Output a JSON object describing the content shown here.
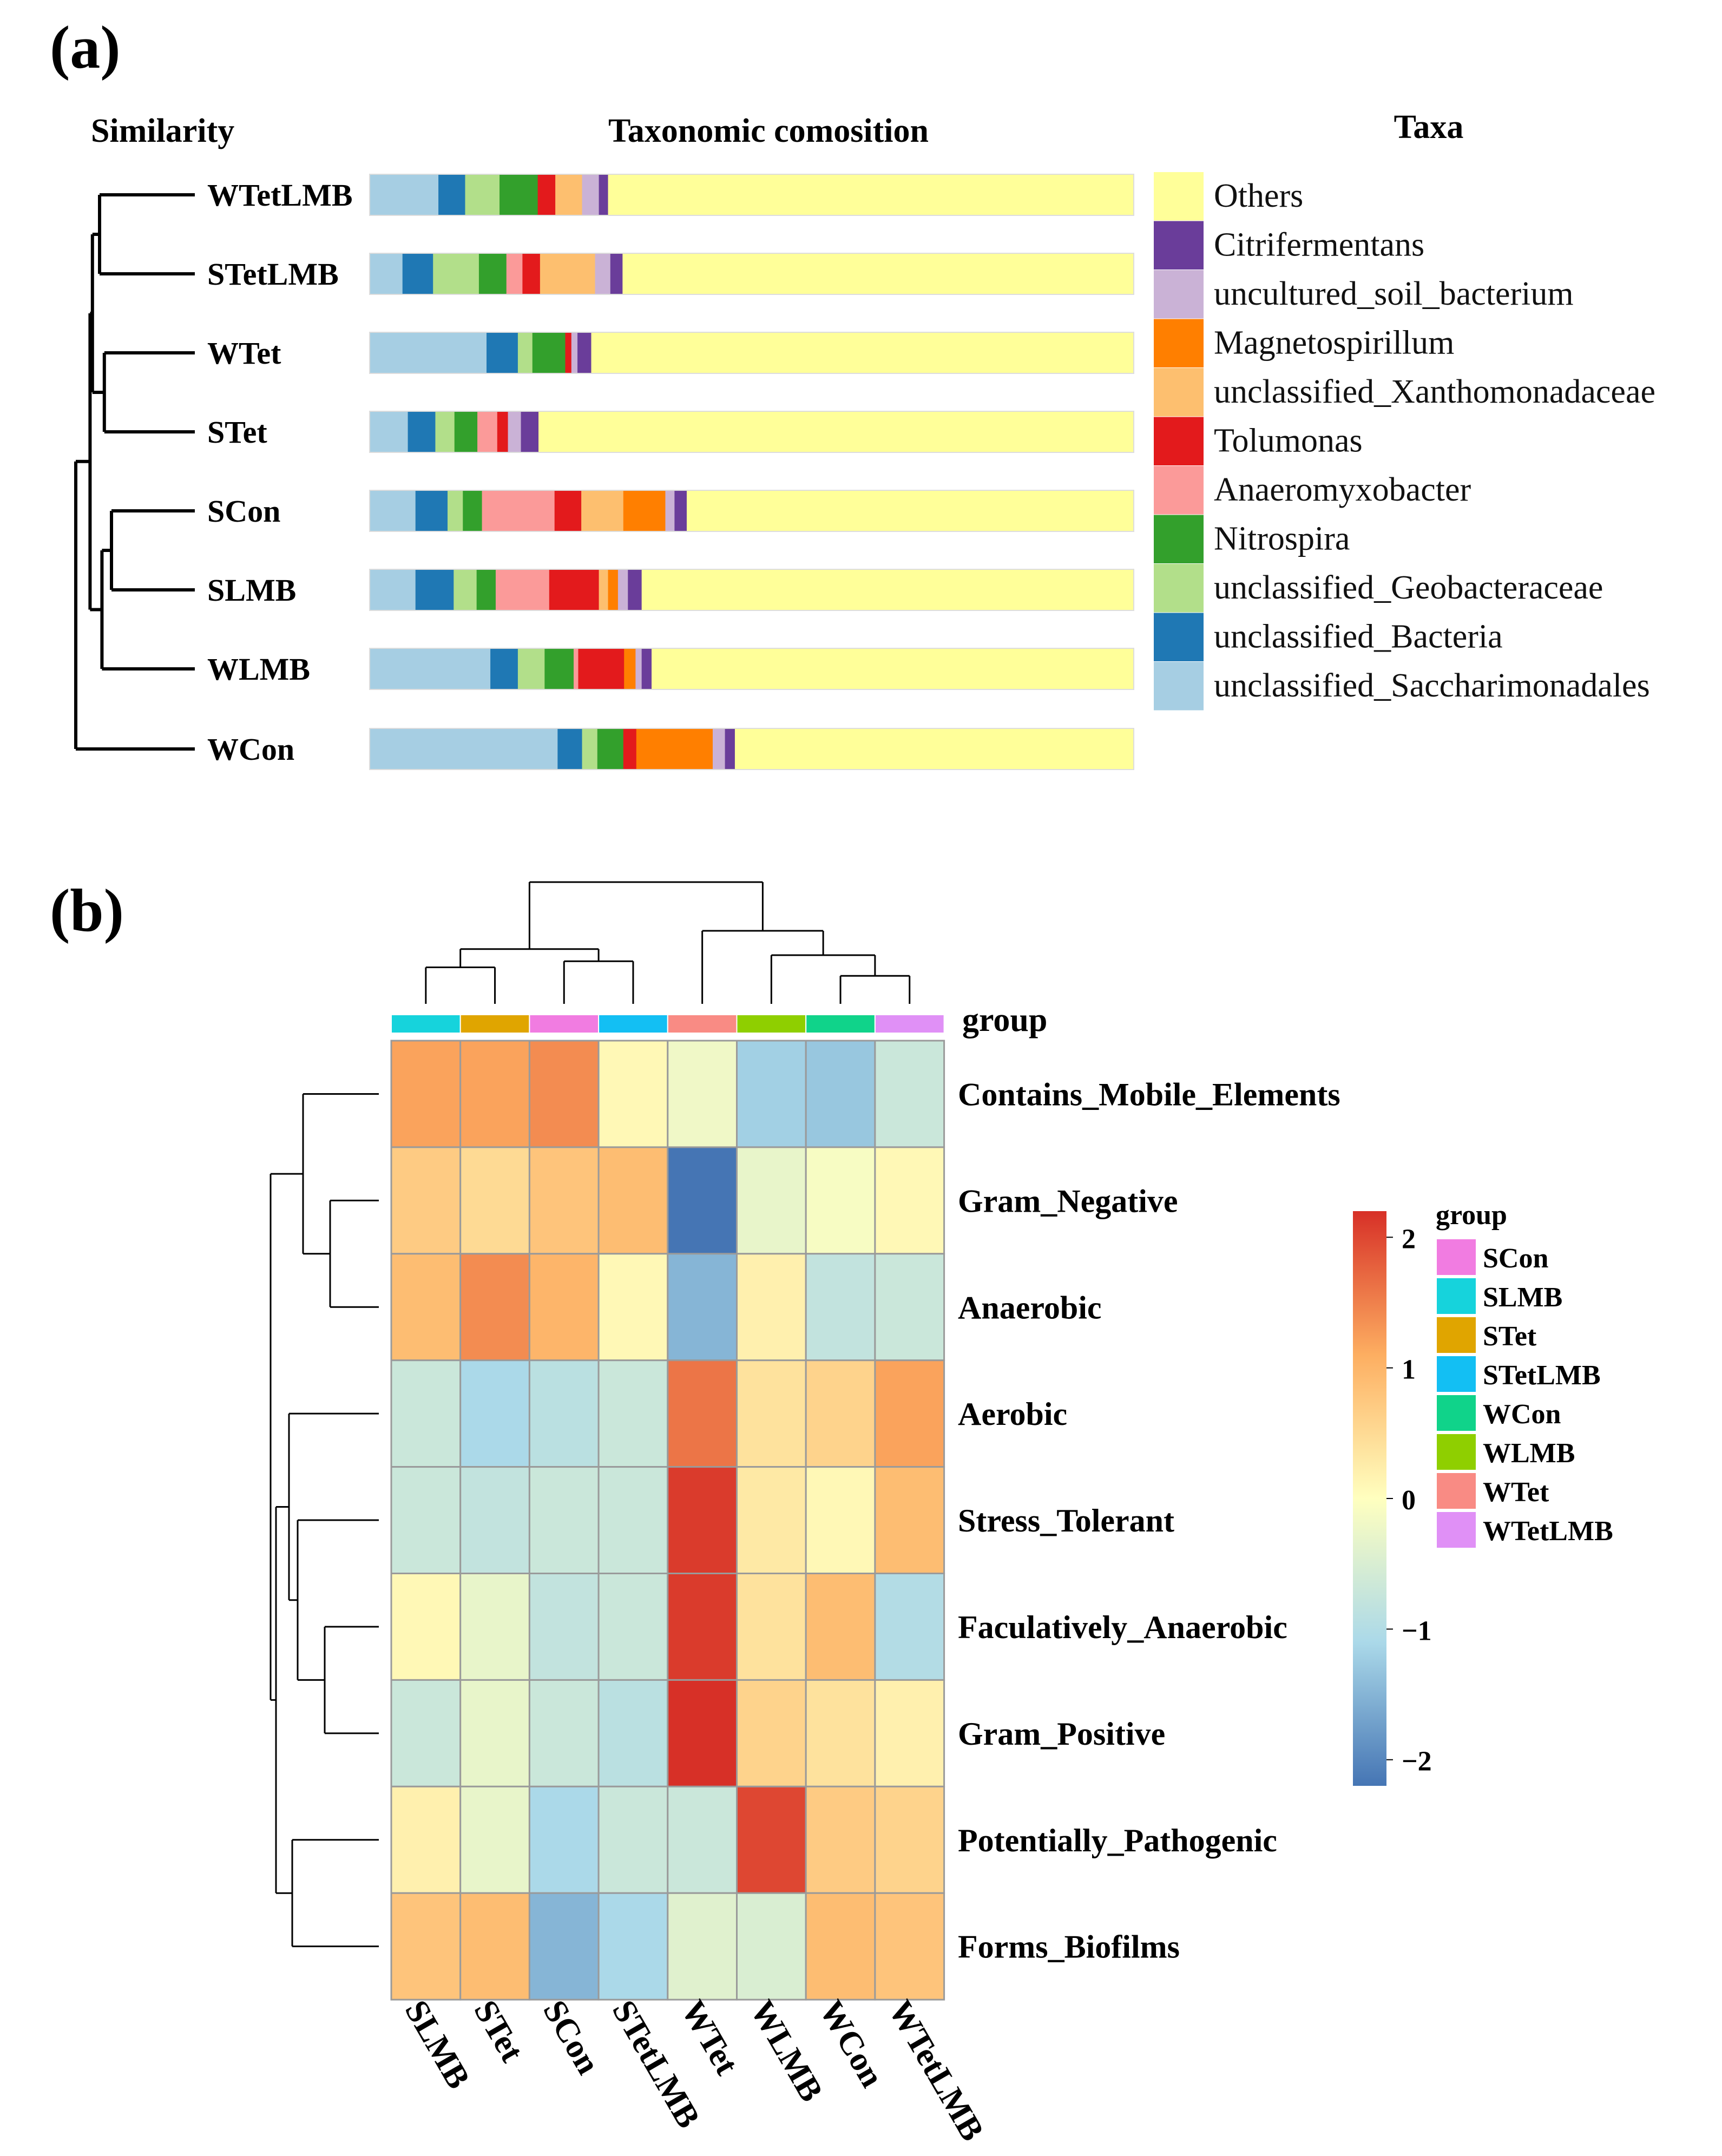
{
  "chart_data": [
    {
      "type": "bar",
      "panel_label": "(a)",
      "similarity_label": "Similarity",
      "title": "Taxonomic comosition",
      "legend_title": "Taxa",
      "legend_position": "right",
      "samples": [
        "WTetLMB",
        "STetLMB",
        "WTet",
        "STet",
        "SCon",
        "SLMB",
        "WLMB",
        "WCon"
      ],
      "taxa": [
        {
          "name": "unclassified_Saccharimonadales",
          "color": "#a6cee3"
        },
        {
          "name": "unclassified_Bacteria",
          "color": "#1f78b4"
        },
        {
          "name": "unclassified_Geobacteraceae",
          "color": "#b2df8a"
        },
        {
          "name": "Nitrospira",
          "color": "#33a02c"
        },
        {
          "name": "Anaeromyxobacter",
          "color": "#fb9a99"
        },
        {
          "name": "Tolumonas",
          "color": "#e31a1c"
        },
        {
          "name": "unclassified_Xanthomonadaceae",
          "color": "#fdbf6f"
        },
        {
          "name": "Magnetospirillum",
          "color": "#ff7f00"
        },
        {
          "name": "uncultured_soil_bacterium",
          "color": "#cab2d6"
        },
        {
          "name": "Citrifermentans",
          "color": "#6a3d9a"
        },
        {
          "name": "Others",
          "color": "#ffff99"
        }
      ],
      "legend_order": [
        "Others",
        "Citrifermentans",
        "uncultured_soil_bacterium",
        "Magnetospirillum",
        "unclassified_Xanthomonadaceae",
        "Tolumonas",
        "Anaeromyxobacter",
        "Nitrospira",
        "unclassified_Geobacteraceae",
        "unclassified_Bacteria",
        "unclassified_Saccharimonadales"
      ],
      "series_percent": {
        "WTetLMB": [
          9.0,
          3.5,
          4.5,
          5.0,
          0,
          2.3,
          3.5,
          0,
          2.2,
          1.2,
          68.8
        ],
        "STetLMB": [
          4.3,
          4.0,
          6.0,
          3.6,
          2.1,
          2.3,
          7.2,
          0,
          2.0,
          1.6,
          66.9
        ],
        "WTet": [
          15.3,
          4.1,
          1.9,
          4.3,
          0,
          0.8,
          0,
          0,
          0.8,
          1.8,
          71.0
        ],
        "STet": [
          5.0,
          3.6,
          2.5,
          3.0,
          2.6,
          1.4,
          0,
          0,
          1.7,
          2.3,
          77.9
        ],
        "SCon": [
          6.0,
          4.2,
          2.0,
          2.5,
          9.5,
          3.5,
          5.5,
          5.5,
          1.2,
          1.6,
          58.5
        ],
        "SLMB": [
          6.0,
          5.0,
          3.0,
          2.5,
          7.0,
          6.5,
          1.2,
          1.3,
          1.3,
          1.8,
          64.4
        ],
        "WLMB": [
          15.8,
          3.6,
          3.5,
          3.8,
          0.6,
          6.0,
          0,
          1.5,
          0.8,
          1.3,
          63.1
        ],
        "WCon": [
          24.6,
          3.2,
          2.0,
          3.4,
          0,
          1.7,
          0,
          10.0,
          1.6,
          1.3,
          52.2
        ]
      },
      "dendrogram": {
        "leaves": [
          "WTetLMB",
          "STetLMB",
          "WTet",
          "STet",
          "SCon",
          "SLMB",
          "WLMB",
          "WCon"
        ],
        "merges": [
          [
            0,
            1,
            0.8
          ],
          [
            2,
            3,
            0.76
          ],
          [
            4,
            5,
            0.7
          ],
          [
            8,
            9,
            0.86
          ],
          [
            10,
            6,
            0.78
          ],
          [
            11,
            12,
            0.88
          ],
          [
            13,
            7,
            1.0
          ]
        ]
      }
    },
    {
      "type": "heatmap",
      "panel_label": "(b)",
      "group_label": "group",
      "columns": [
        "SLMB",
        "STet",
        "SCon",
        "STetLMB",
        "WTet",
        "WLMB",
        "WCon",
        "WTetLMB"
      ],
      "rows": [
        "Contains_Mobile_Elements",
        "Gram_Negative",
        "Anaerobic",
        "Aerobic",
        "Stress_Tolerant",
        "Faculatively_Anaerobic",
        "Gram_Positive",
        "Potentially_Pathogenic",
        "Forms_Biofilms"
      ],
      "values": [
        [
          1.2,
          1.2,
          1.4,
          0.1,
          -0.2,
          -1.2,
          -1.3,
          -0.7
        ],
        [
          0.7,
          0.5,
          0.8,
          0.9,
          -2.2,
          -0.3,
          -0.1,
          0.1
        ],
        [
          0.9,
          1.4,
          1.0,
          0.1,
          -1.5,
          0.2,
          -0.8,
          -0.7
        ],
        [
          -0.7,
          -1.1,
          -0.9,
          -0.7,
          1.6,
          0.4,
          0.6,
          1.2
        ],
        [
          -0.7,
          -0.8,
          -0.7,
          -0.7,
          2.1,
          0.3,
          0.1,
          0.9
        ],
        [
          0.1,
          -0.3,
          -0.8,
          -0.7,
          2.1,
          0.4,
          0.9,
          -1.0
        ],
        [
          -0.7,
          -0.3,
          -0.7,
          -0.9,
          2.2,
          0.6,
          0.4,
          0.2
        ],
        [
          0.2,
          -0.3,
          -1.1,
          -0.7,
          -0.7,
          2.0,
          0.7,
          0.6
        ],
        [
          0.8,
          0.9,
          -1.5,
          -1.1,
          -0.4,
          -0.5,
          0.9,
          0.8
        ]
      ],
      "color_scale": {
        "min": -2.2,
        "max": 2.2,
        "ticks": [
          2,
          1,
          0,
          -1,
          -2
        ],
        "tick_labels": [
          "2",
          "1",
          "0",
          "−1",
          "−2"
        ]
      },
      "legend_title": "group",
      "legend_groups": [
        "SCon",
        "SLMB",
        "STet",
        "STetLMB",
        "WCon",
        "WLMB",
        "WTet",
        "WTetLMB"
      ],
      "group_colors": {
        "SCon": "#f17ce1",
        "SLMB": "#16d3dc",
        "STet": "#e0a500",
        "STetLMB": "#13bff3",
        "WCon": "#10d38a",
        "WLMB": "#8fcf00",
        "WTet": "#f98b84",
        "WTetLMB": "#e090f6"
      },
      "col_dendrogram": {
        "merges": [
          [
            0,
            1,
            0.3
          ],
          [
            2,
            3,
            0.35
          ],
          [
            8,
            9,
            0.45
          ],
          [
            6,
            7,
            0.23
          ],
          [
            5,
            11,
            0.4
          ],
          [
            4,
            12,
            0.6
          ],
          [
            10,
            13,
            1.0
          ]
        ]
      },
      "row_dendrogram": {
        "merges": [
          [
            1,
            2,
            0.45
          ],
          [
            0,
            9,
            0.7
          ],
          [
            5,
            6,
            0.5
          ],
          [
            4,
            11,
            0.75
          ],
          [
            3,
            12,
            0.83
          ],
          [
            7,
            8,
            0.8
          ],
          [
            13,
            14,
            0.95
          ],
          [
            10,
            15,
            1.0
          ]
        ]
      }
    }
  ]
}
